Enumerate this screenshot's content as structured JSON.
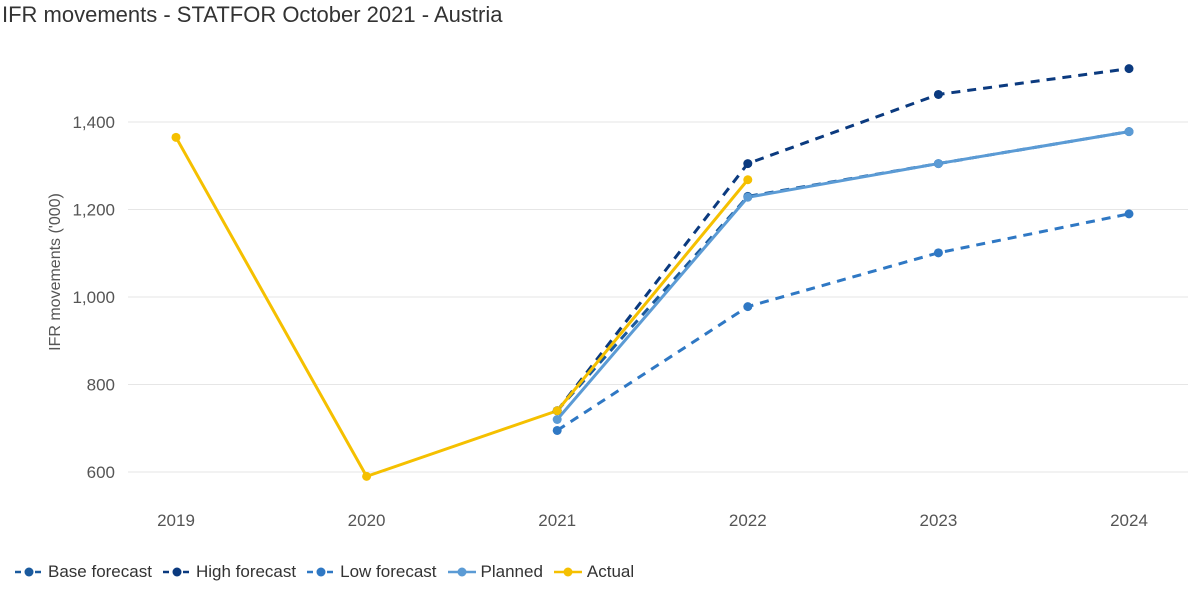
{
  "chart_data": {
    "type": "line",
    "title": "IFR movements - STATFOR October 2021 - Austria",
    "xlabel": "",
    "ylabel": "IFR movements ('000)",
    "categories": [
      "2019",
      "2020",
      "2021",
      "2022",
      "2023",
      "2024"
    ],
    "y_ticks": [
      "600",
      "800",
      "1,000",
      "1,200",
      "1,400"
    ],
    "ylim": [
      560,
      1560
    ],
    "grid": true,
    "legend_position": "bottom-left",
    "series": [
      {
        "name": "Base forecast",
        "style": "dashed",
        "color": "#1a5a9e",
        "values": [
          null,
          null,
          740,
          1230,
          1305,
          1378
        ]
      },
      {
        "name": "High forecast",
        "style": "dashed",
        "color": "#0b3a7f",
        "values": [
          null,
          null,
          740,
          1305,
          1463,
          1522
        ]
      },
      {
        "name": "Low forecast",
        "style": "dashed",
        "color": "#2f78c4",
        "values": [
          null,
          null,
          695,
          978,
          1101,
          1190
        ]
      },
      {
        "name": "Planned",
        "style": "solid",
        "color": "#5b9bd5",
        "values": [
          null,
          null,
          720,
          1228,
          1305,
          1378
        ]
      },
      {
        "name": "Actual",
        "style": "solid",
        "color": "#f5c000",
        "values": [
          1365,
          590,
          740,
          1268,
          null,
          null
        ]
      }
    ]
  }
}
